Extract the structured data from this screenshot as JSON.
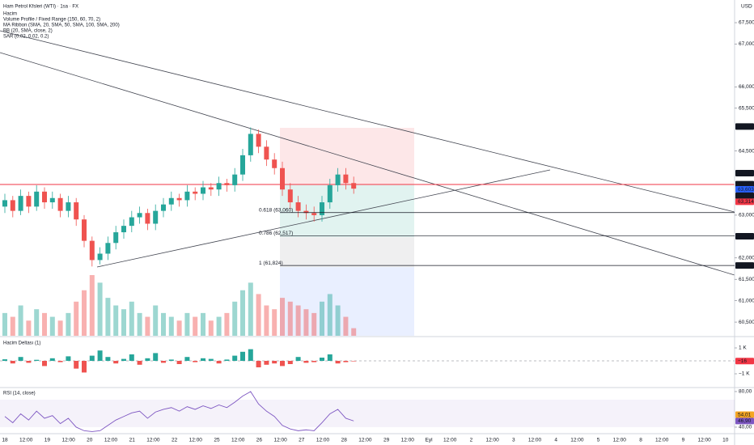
{
  "header": {
    "title": "Ham Petrol Kfsleri (WTI) · 1sa · FX",
    "indicators": [
      "Hacim",
      "Volume Profile / Fixed Range (150, 60, 70, 2)",
      "MA Ribbon (SMA, 20, SMA, 50, SMA, 100, SMA, 200)",
      "BB (20, SMA, close, 2)",
      "SAR (0.02, 0.02, 0.2)"
    ],
    "currency": "USD"
  },
  "time_axis": {
    "labels": [
      "18",
      "12:00",
      "19",
      "12:00",
      "20",
      "12:00",
      "21",
      "12:00",
      "22",
      "12:00",
      "25",
      "12:00",
      "26",
      "12:00",
      "27",
      "12:00",
      "28",
      "12:00",
      "29",
      "12:00",
      "Eyl",
      "12:00",
      "2",
      "12:00",
      "3",
      "12:00",
      "4",
      "12:00",
      "5",
      "12:00",
      "8",
      "12:00",
      "9",
      "12:00",
      "10"
    ]
  },
  "chart_data": [
    {
      "type": "candlestick",
      "up_color": "#26a69a",
      "down_color": "#ef5350",
      "open": [
        63.2,
        63.35,
        63.1,
        63.45,
        63.2,
        63.55,
        63.3,
        63.4,
        63.1,
        63.3,
        62.9,
        62.4,
        61.95,
        62.1,
        62.35,
        62.6,
        62.75,
        62.95,
        63.05,
        62.8,
        63.1,
        63.25,
        63.4,
        63.35,
        63.55,
        63.5,
        63.65,
        63.6,
        63.75,
        63.7,
        63.95,
        64.4,
        64.9,
        64.6,
        64.3,
        64.1,
        63.6,
        63.3,
        63.1,
        63.05,
        63.0,
        63.3,
        63.7,
        63.95,
        63.75
      ],
      "high": [
        63.5,
        63.45,
        63.6,
        63.55,
        63.7,
        63.65,
        63.55,
        63.5,
        63.45,
        63.4,
        63.0,
        62.5,
        62.25,
        62.5,
        62.75,
        62.9,
        63.1,
        63.2,
        63.15,
        63.25,
        63.4,
        63.55,
        63.5,
        63.7,
        63.65,
        63.8,
        63.75,
        63.9,
        63.85,
        64.1,
        64.55,
        65.05,
        65.0,
        64.75,
        64.45,
        64.25,
        63.75,
        63.45,
        63.25,
        63.2,
        63.45,
        63.85,
        64.1,
        64.1,
        63.9
      ],
      "low": [
        63.05,
        62.95,
        63.0,
        63.05,
        63.1,
        63.15,
        63.15,
        62.95,
        62.95,
        62.75,
        62.25,
        61.8,
        61.85,
        61.95,
        62.2,
        62.45,
        62.6,
        62.8,
        62.65,
        62.65,
        62.95,
        63.1,
        63.2,
        63.2,
        63.35,
        63.35,
        63.45,
        63.45,
        63.55,
        63.55,
        63.8,
        64.25,
        64.45,
        64.15,
        63.95,
        63.45,
        63.15,
        62.95,
        62.9,
        62.85,
        62.85,
        63.15,
        63.55,
        63.6,
        63.5
      ],
      "close": [
        63.35,
        63.1,
        63.45,
        63.2,
        63.55,
        63.3,
        63.4,
        63.1,
        63.3,
        62.9,
        62.4,
        61.95,
        62.1,
        62.35,
        62.6,
        62.75,
        62.95,
        63.05,
        62.8,
        63.1,
        63.25,
        63.4,
        63.35,
        63.55,
        63.5,
        63.65,
        63.6,
        63.75,
        63.7,
        63.95,
        64.4,
        64.9,
        64.6,
        64.3,
        64.1,
        63.6,
        63.3,
        63.1,
        63.05,
        63.0,
        63.3,
        63.7,
        63.95,
        63.75,
        63.62
      ],
      "volume": [
        30,
        25,
        40,
        20,
        35,
        30,
        25,
        20,
        30,
        45,
        60,
        80,
        70,
        50,
        40,
        35,
        45,
        30,
        25,
        40,
        30,
        25,
        20,
        30,
        25,
        30,
        20,
        25,
        30,
        45,
        60,
        70,
        55,
        40,
        35,
        50,
        45,
        40,
        35,
        30,
        45,
        55,
        40,
        25,
        10
      ],
      "ylim": [
        60.18,
        68.03
      ],
      "yticks": [
        {
          "value": 67.5,
          "label": "67,500"
        },
        {
          "value": 67,
          "label": "67,000"
        },
        {
          "value": 66,
          "label": "66,000"
        },
        {
          "value": 65.5,
          "label": "65,500"
        },
        {
          "value": 64.5,
          "label": "64,500"
        },
        {
          "value": 63,
          "label": "63,000"
        },
        {
          "value": 62,
          "label": "62,000"
        },
        {
          "value": 61.5,
          "label": "61,500"
        },
        {
          "value": 61,
          "label": "61,000"
        },
        {
          "value": 60.5,
          "label": "60,500"
        }
      ],
      "price_tags": [
        {
          "value": 65.072,
          "label": "65,072",
          "color": "#131722"
        },
        {
          "value": 63.983,
          "label": "63,983",
          "color": "#131722"
        },
        {
          "value": 63.724,
          "label": "63,724",
          "color": "#131722"
        },
        {
          "value": 63.603,
          "label": "63,603",
          "color": "#2962ff"
        },
        {
          "value": 63.455,
          "label": "63,455",
          "color": "#131722"
        },
        {
          "value": 63.314,
          "label": "63,314",
          "color": "#f23645"
        },
        {
          "value": 62.506,
          "label": "62,506",
          "color": "#131722"
        },
        {
          "value": 61.823,
          "label": "61,823",
          "color": "#131722"
        }
      ],
      "annotations": [
        {
          "value": 63.06,
          "label": "0.618 (63,060)"
        },
        {
          "value": 62.517,
          "label": "0.786 (62,517)"
        },
        {
          "value": 61.824,
          "label": "1 (61,824)"
        }
      ]
    },
    {
      "type": "bar",
      "title": "Hacim Deltası (1)",
      "up_color": "#26a69a",
      "down_color": "#ef5350",
      "values": [
        120,
        -200,
        300,
        -150,
        80,
        -400,
        200,
        -100,
        350,
        -600,
        -900,
        400,
        800,
        300,
        -200,
        150,
        500,
        -300,
        200,
        600,
        -150,
        100,
        -250,
        300,
        -100,
        200,
        150,
        -200,
        100,
        400,
        700,
        900,
        -500,
        -300,
        -200,
        -400,
        -250,
        300,
        -150,
        -100,
        250,
        500,
        -200,
        -100,
        -16
      ],
      "ylim": [
        -2000,
        1750
      ],
      "yticks": [
        {
          "value": 1000,
          "label": "1 K"
        },
        {
          "value": -1000,
          "label": "−1 K"
        }
      ],
      "price_tags": [
        {
          "value": -16,
          "label": "−16",
          "color": "#f23645"
        }
      ]
    },
    {
      "type": "line",
      "title": "RSI (14, close)",
      "color": "#7e57c2",
      "values": [
        52,
        45,
        55,
        48,
        58,
        50,
        53,
        44,
        50,
        40,
        36,
        35,
        36,
        42,
        48,
        52,
        56,
        58,
        50,
        57,
        60,
        62,
        58,
        63,
        60,
        64,
        61,
        65,
        62,
        68,
        75,
        80,
        66,
        58,
        52,
        42,
        38,
        36,
        37,
        36,
        45,
        55,
        60,
        50,
        47
      ],
      "ylim": [
        33.6,
        83.6
      ],
      "yticks": [
        {
          "value": 80,
          "label": "80,00"
        },
        {
          "value": 40,
          "label": "40,00"
        }
      ],
      "price_tags": [
        {
          "value": 54.01,
          "label": "54,01",
          "color": "#f5a623"
        },
        {
          "value": 46.9,
          "label": "46,90",
          "color": "#7e57c2"
        }
      ]
    }
  ]
}
